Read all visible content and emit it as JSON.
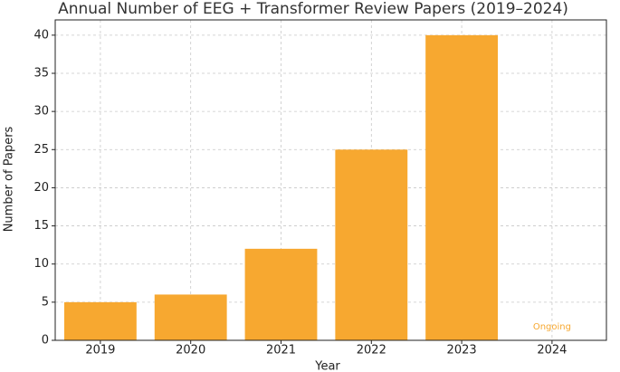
{
  "chart_data": {
    "type": "bar",
    "title": "Annual Number of EEG + Transformer Review Papers (2019–2024)",
    "x_label": "Year",
    "y_label": "Number of Papers",
    "categories": [
      "2019",
      "2020",
      "2021",
      "2022",
      "2023",
      "2024"
    ],
    "values": [
      5,
      6,
      12,
      25,
      40,
      null
    ],
    "color": "#f7a830",
    "annotation": "Ongoing",
    "ylim": [
      0,
      42
    ],
    "yticks": [
      0,
      5,
      10,
      15,
      20,
      25,
      30,
      35,
      40
    ],
    "grid": true
  }
}
